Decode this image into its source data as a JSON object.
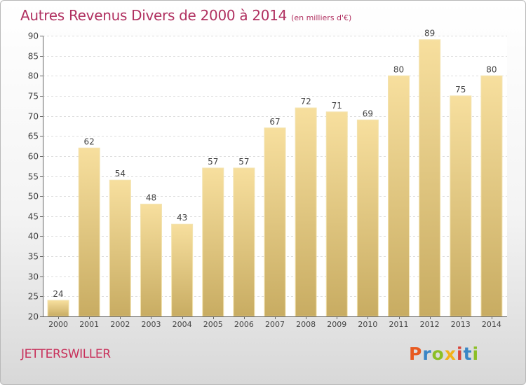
{
  "header": {
    "title": "Autres Revenus Divers de 2000 à 2014",
    "subtitle": "(en milliers d'€)"
  },
  "footer": {
    "place": "JETTERSWILLER",
    "logo": "Proxiti"
  },
  "colors": {
    "title": "#b03060",
    "bar_top": "#f7df9e",
    "bar_bottom": "#c8ac62"
  },
  "chart_data": {
    "type": "bar",
    "categories": [
      "2000",
      "2001",
      "2002",
      "2003",
      "2004",
      "2005",
      "2006",
      "2007",
      "2008",
      "2009",
      "2010",
      "2011",
      "2012",
      "2013",
      "2014"
    ],
    "values": [
      24,
      62,
      54,
      48,
      43,
      57,
      57,
      67,
      72,
      71,
      69,
      80,
      89,
      75,
      80
    ],
    "title": "Autres Revenus Divers de 2000 à 2014",
    "subtitle": "(en milliers d'€)",
    "xlabel": "",
    "ylabel": "",
    "ylim": [
      20,
      90
    ],
    "yticks": [
      20,
      25,
      30,
      35,
      40,
      45,
      50,
      55,
      60,
      65,
      70,
      75,
      80,
      85,
      90
    ],
    "grid": true,
    "data_labels": true
  }
}
